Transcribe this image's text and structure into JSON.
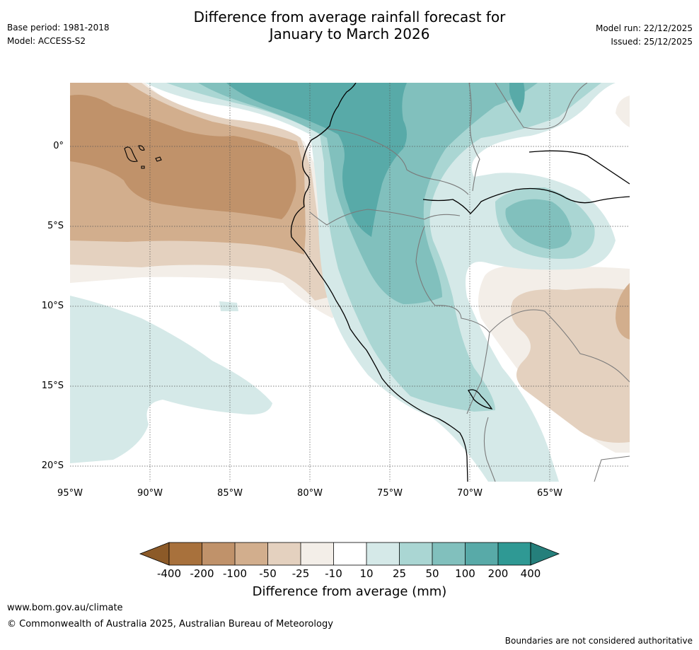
{
  "header": {
    "title_line1": "Difference from average rainfall forecast for",
    "title_line2": "January to March 2026",
    "base_period": "Base period: 1981-2018",
    "model": "Model: ACCESS-S2",
    "model_run": "Model run: 22/12/2025",
    "issued": "Issued: 25/12/2025"
  },
  "axes": {
    "lat_labels": [
      "0°",
      "5°S",
      "10°S",
      "15°S",
      "20°S"
    ],
    "lon_labels": [
      "95°W",
      "90°W",
      "85°W",
      "80°W",
      "75°W",
      "70°W",
      "65°W"
    ]
  },
  "legend": {
    "title": "Difference from average (mm)",
    "ticks": [
      "-400",
      "-200",
      "-100",
      "-50",
      "-25",
      "-10",
      "10",
      "25",
      "50",
      "100",
      "200",
      "400"
    ],
    "colors": {
      "lt_m400": "#8c5a28",
      "m400_m200": "#a8713c",
      "m200_m100": "#c0926a",
      "m100_m50": "#d2ae8d",
      "m50_m25": "#e4d1bf",
      "m25_m10": "#f3eee8",
      "m10_10": "#ffffff",
      "p10_25": "#d5e9e8",
      "p25_50": "#aad6d3",
      "p50_100": "#81c0bd",
      "p100_200": "#58aaa8",
      "p200_400": "#2f9994",
      "gt_400": "#257f7b"
    }
  },
  "footer": {
    "url": "www.bom.gov.au/climate",
    "copyright": "© Commonwealth of Australia 2025, Australian Bureau of Meteorology",
    "note": "Boundaries are not considered authoritative"
  }
}
